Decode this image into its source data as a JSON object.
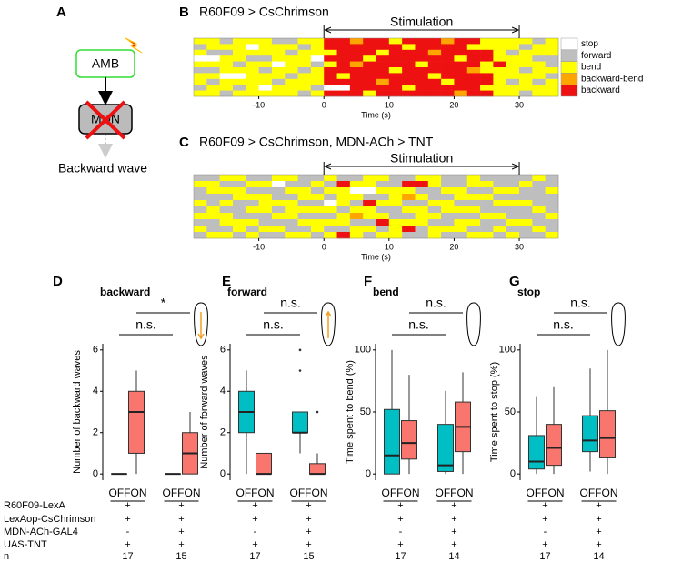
{
  "diagram": {
    "panel_label": "A",
    "nodes": [
      "AMB",
      "MDN"
    ],
    "output": "Backward wave"
  },
  "chart_data": [
    {
      "type": "ethogram",
      "panel_label": "B",
      "title": "R60F09 > CsChrimson",
      "annotation": "Stimulation",
      "stimulation": [
        0,
        30
      ],
      "xlabel": "Time (s)",
      "xlim": [
        -20,
        36
      ],
      "xticks": [
        -10,
        0,
        10,
        20,
        30
      ],
      "states": [
        {
          "name": "stop",
          "color": "#ffffff"
        },
        {
          "name": "forward",
          "color": "#bebebe"
        },
        {
          "name": "bend",
          "color": "#ffff00"
        },
        {
          "name": "backward-bend",
          "color": "#ffa500"
        },
        {
          "name": "backward",
          "color": "#ee1111"
        }
      ],
      "rows": [
        [
          2,
          2,
          1,
          2,
          2,
          2,
          1,
          1,
          2,
          2,
          4,
          4,
          3,
          4,
          4,
          2,
          4,
          4,
          4,
          3,
          4,
          4,
          2,
          2,
          2,
          2,
          1,
          2
        ],
        [
          1,
          2,
          2,
          2,
          0,
          2,
          2,
          2,
          1,
          2,
          4,
          4,
          4,
          4,
          4,
          4,
          2,
          4,
          4,
          4,
          4,
          2,
          2,
          2,
          2,
          1,
          2,
          2
        ],
        [
          2,
          1,
          1,
          2,
          2,
          2,
          2,
          1,
          2,
          2,
          2,
          4,
          4,
          4,
          2,
          4,
          4,
          4,
          3,
          4,
          4,
          4,
          4,
          2,
          1,
          2,
          2,
          2
        ],
        [
          0,
          0,
          2,
          2,
          1,
          1,
          2,
          2,
          2,
          0,
          4,
          4,
          4,
          2,
          4,
          4,
          4,
          4,
          4,
          4,
          2,
          4,
          4,
          2,
          2,
          2,
          1,
          1
        ],
        [
          2,
          2,
          2,
          1,
          2,
          2,
          0,
          2,
          2,
          1,
          2,
          4,
          3,
          4,
          4,
          4,
          4,
          2,
          4,
          4,
          4,
          4,
          2,
          4,
          2,
          2,
          2,
          1
        ],
        [
          1,
          1,
          2,
          2,
          2,
          1,
          2,
          2,
          1,
          2,
          4,
          4,
          4,
          4,
          4,
          2,
          4,
          4,
          4,
          4,
          4,
          3,
          2,
          2,
          2,
          1,
          2,
          2
        ],
        [
          2,
          2,
          0,
          0,
          2,
          2,
          2,
          1,
          2,
          2,
          4,
          2,
          4,
          4,
          4,
          4,
          4,
          4,
          2,
          4,
          4,
          4,
          4,
          2,
          2,
          2,
          2,
          1
        ],
        [
          2,
          1,
          2,
          2,
          2,
          2,
          1,
          2,
          2,
          2,
          4,
          4,
          4,
          4,
          3,
          4,
          4,
          4,
          4,
          2,
          4,
          4,
          4,
          2,
          1,
          2,
          1,
          2
        ],
        [
          1,
          2,
          2,
          1,
          2,
          0,
          2,
          2,
          2,
          1,
          0,
          0,
          4,
          4,
          4,
          4,
          2,
          4,
          4,
          4,
          4,
          4,
          2,
          2,
          2,
          2,
          2,
          2
        ],
        [
          2,
          2,
          1,
          2,
          2,
          2,
          2,
          2,
          1,
          2,
          4,
          4,
          4,
          2,
          4,
          4,
          4,
          4,
          4,
          4,
          3,
          4,
          4,
          2,
          2,
          1,
          2,
          2
        ]
      ]
    },
    {
      "type": "ethogram",
      "panel_label": "C",
      "title": "R60F09 > CsChrimson, MDN-ACh > TNT",
      "annotation": "Stimulation",
      "stimulation": [
        0,
        30
      ],
      "xlabel": "Time (s)",
      "xlim": [
        -20,
        36
      ],
      "xticks": [
        -10,
        0,
        10,
        20,
        30
      ],
      "state_colors": [
        "#ffffff",
        "#bebebe",
        "#ffff00",
        "#ffa500",
        "#ee1111"
      ],
      "rows": [
        [
          1,
          1,
          2,
          2,
          1,
          1,
          2,
          2,
          1,
          1,
          2,
          1,
          1,
          2,
          2,
          1,
          1,
          2,
          2,
          1,
          1,
          2,
          1,
          1,
          1,
          1,
          2,
          1
        ],
        [
          2,
          2,
          1,
          1,
          2,
          2,
          0,
          1,
          1,
          2,
          1,
          4,
          2,
          2,
          1,
          1,
          4,
          4,
          2,
          1,
          1,
          2,
          2,
          1,
          1,
          2,
          1,
          1
        ],
        [
          1,
          2,
          2,
          2,
          1,
          1,
          1,
          2,
          2,
          1,
          2,
          2,
          0,
          0,
          2,
          2,
          2,
          1,
          1,
          2,
          2,
          1,
          1,
          2,
          2,
          1,
          1,
          2
        ],
        [
          1,
          1,
          1,
          2,
          2,
          2,
          1,
          1,
          2,
          2,
          1,
          2,
          2,
          1,
          1,
          2,
          3,
          2,
          1,
          1,
          2,
          2,
          2,
          1,
          1,
          1,
          1,
          1
        ],
        [
          2,
          1,
          2,
          1,
          1,
          2,
          2,
          2,
          1,
          1,
          0,
          2,
          1,
          4,
          2,
          2,
          1,
          1,
          2,
          2,
          1,
          1,
          1,
          2,
          2,
          2,
          1,
          1
        ],
        [
          1,
          2,
          1,
          1,
          2,
          2,
          1,
          2,
          2,
          2,
          2,
          1,
          2,
          2,
          1,
          1,
          2,
          2,
          1,
          2,
          2,
          2,
          1,
          1,
          1,
          1,
          2,
          1
        ],
        [
          2,
          2,
          2,
          1,
          1,
          1,
          2,
          2,
          1,
          1,
          1,
          2,
          3,
          2,
          2,
          1,
          1,
          2,
          2,
          1,
          1,
          1,
          2,
          2,
          1,
          1,
          1,
          2
        ],
        [
          1,
          1,
          2,
          2,
          2,
          1,
          1,
          1,
          2,
          2,
          2,
          2,
          1,
          1,
          4,
          2,
          2,
          2,
          1,
          1,
          2,
          2,
          1,
          1,
          2,
          2,
          1,
          1
        ],
        [
          2,
          1,
          1,
          2,
          1,
          2,
          2,
          1,
          1,
          2,
          1,
          1,
          2,
          2,
          1,
          2,
          4,
          1,
          2,
          2,
          2,
          1,
          1,
          2,
          1,
          1,
          2,
          1
        ],
        [
          1,
          2,
          2,
          1,
          2,
          1,
          1,
          2,
          2,
          1,
          2,
          4,
          2,
          1,
          2,
          2,
          1,
          1,
          2,
          1,
          1,
          2,
          2,
          1,
          2,
          1,
          1,
          2
        ]
      ]
    },
    {
      "type": "box",
      "panel_label": "D",
      "title": "backward",
      "ylabel": "Number of backward waves",
      "ylim": [
        -0.3,
        6.3
      ],
      "yticks": [
        0,
        2,
        4,
        6
      ],
      "conditions": [
        "OFF",
        "ON"
      ],
      "colors": [
        "#00bfc4",
        "#f8766d"
      ],
      "significance": [
        "n.s.",
        "*"
      ],
      "boxes": [
        {
          "stats": [
            0,
            0,
            0,
            0,
            0
          ],
          "outliers": []
        },
        {
          "stats": [
            0,
            1,
            3,
            4,
            5
          ],
          "outliers": []
        },
        {
          "stats": [
            0,
            0,
            0,
            0,
            0
          ],
          "outliers": []
        },
        {
          "stats": [
            0,
            0,
            1,
            2,
            3
          ],
          "outliers": []
        }
      ],
      "genotypes": [
        [
          "+",
          "+",
          "-",
          "+"
        ],
        [
          "+",
          "+",
          "+",
          "+"
        ]
      ],
      "n": [
        17,
        15
      ]
    },
    {
      "type": "box",
      "panel_label": "E",
      "title": "forward",
      "ylabel": "Number of forward waves",
      "ylim": [
        -0.3,
        6.3
      ],
      "yticks": [
        0,
        2,
        4,
        6
      ],
      "conditions": [
        "OFF",
        "ON"
      ],
      "colors": [
        "#00bfc4",
        "#f8766d"
      ],
      "significance": [
        "n.s.",
        "n.s."
      ],
      "boxes": [
        {
          "stats": [
            0,
            2,
            3,
            4,
            5
          ],
          "outliers": []
        },
        {
          "stats": [
            0,
            0,
            0,
            1,
            1
          ],
          "outliers": []
        },
        {
          "stats": [
            1,
            2,
            2,
            3,
            3
          ],
          "outliers": [
            5,
            6
          ]
        },
        {
          "stats": [
            0,
            0,
            0,
            0.5,
            1
          ],
          "outliers": [
            3
          ]
        }
      ],
      "genotypes": [
        [
          "+",
          "+",
          "-",
          "+"
        ],
        [
          "+",
          "+",
          "+",
          "+"
        ]
      ],
      "n": [
        17,
        15
      ]
    },
    {
      "type": "box",
      "panel_label": "F",
      "title": "bend",
      "ylabel": "Time spent to bend (%)",
      "ylim": [
        -5,
        105
      ],
      "yticks": [
        0,
        50,
        100
      ],
      "conditions": [
        "OFF",
        "ON"
      ],
      "colors": [
        "#00bfc4",
        "#f8766d"
      ],
      "significance": [
        "n.s.",
        "n.s."
      ],
      "boxes": [
        {
          "stats": [
            0,
            0,
            15,
            52,
            100
          ],
          "outliers": []
        },
        {
          "stats": [
            0,
            12,
            25,
            43,
            80
          ],
          "outliers": []
        },
        {
          "stats": [
            0,
            2,
            7,
            40,
            67
          ],
          "outliers": []
        },
        {
          "stats": [
            0,
            18,
            38,
            58,
            82
          ],
          "outliers": []
        }
      ],
      "genotypes": [
        [
          "+",
          "+",
          "-",
          "+"
        ],
        [
          "+",
          "+",
          "+",
          "+"
        ]
      ],
      "n": [
        17,
        14
      ]
    },
    {
      "type": "box",
      "panel_label": "G",
      "title": "stop",
      "ylabel": "Time spent to stop (%)",
      "ylim": [
        -5,
        105
      ],
      "yticks": [
        0,
        50,
        100
      ],
      "conditions": [
        "OFF",
        "ON"
      ],
      "colors": [
        "#00bfc4",
        "#f8766d"
      ],
      "significance": [
        "n.s.",
        "n.s."
      ],
      "boxes": [
        {
          "stats": [
            0,
            4,
            10,
            31,
            62
          ],
          "outliers": []
        },
        {
          "stats": [
            0,
            7,
            21,
            40,
            70
          ],
          "outliers": []
        },
        {
          "stats": [
            2,
            18,
            27,
            47,
            85
          ],
          "outliers": []
        },
        {
          "stats": [
            0,
            13,
            29,
            51,
            100
          ],
          "outliers": []
        }
      ],
      "genotypes": [
        [
          "+",
          "+",
          "-",
          "+"
        ],
        [
          "+",
          "+",
          "+",
          "+"
        ]
      ],
      "n": [
        17,
        14
      ]
    }
  ],
  "genotype_rows": [
    "R60F09-LexA",
    "LexAop-CsChrimson",
    "MDN-ACh-GAL4",
    "UAS-TNT",
    "n"
  ]
}
